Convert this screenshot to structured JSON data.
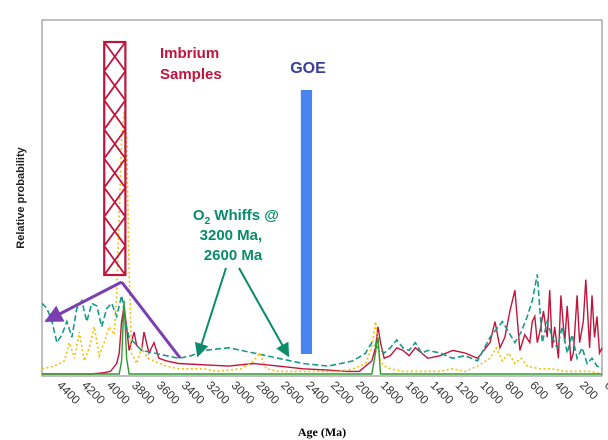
{
  "chart_data": {
    "type": "line",
    "title": "",
    "xlabel": "Age (Ma)",
    "ylabel": "Relative probability",
    "x_reversed": true,
    "xlim": [
      4500,
      0
    ],
    "ylim": [
      0,
      1
    ],
    "x_ticks": [
      4400,
      4200,
      4000,
      3800,
      3600,
      3400,
      3200,
      3000,
      2800,
      2600,
      2400,
      2200,
      2000,
      1800,
      1600,
      1400,
      1200,
      1000,
      800,
      600,
      400,
      200,
      0
    ],
    "grid": false,
    "series": [
      {
        "color": "#c0143c",
        "style": "solid",
        "x": [
          4500,
          4300,
          4100,
          4000,
          3950,
          3900,
          3880,
          3860,
          3840,
          3820,
          3800,
          3760,
          3740,
          3700,
          3680,
          3640,
          3600,
          3560,
          3500,
          3400,
          3200,
          3000,
          2800,
          2600,
          2400,
          2200,
          2050,
          1950,
          1850,
          1820,
          1800,
          1780,
          1750,
          1700,
          1650,
          1600,
          1550,
          1500,
          1450,
          1400,
          1300,
          1200,
          1100,
          1000,
          950,
          900,
          860,
          820,
          780,
          740,
          700,
          660,
          620,
          580,
          560,
          540,
          520,
          500,
          470,
          440,
          420,
          400,
          380,
          350,
          330,
          300,
          280,
          250,
          230,
          200,
          180,
          150,
          130,
          100,
          80,
          60,
          40,
          20,
          0
        ],
        "y": [
          0.0,
          0.0,
          0.0,
          0.005,
          0.01,
          0.04,
          0.08,
          0.2,
          0.26,
          0.18,
          0.09,
          0.16,
          0.11,
          0.09,
          0.16,
          0.08,
          0.12,
          0.06,
          0.05,
          0.04,
          0.035,
          0.03,
          0.04,
          0.03,
          0.02,
          0.015,
          0.01,
          0.01,
          0.05,
          0.1,
          0.18,
          0.12,
          0.06,
          0.07,
          0.1,
          0.09,
          0.07,
          0.1,
          0.08,
          0.06,
          0.07,
          0.09,
          0.08,
          0.06,
          0.09,
          0.12,
          0.2,
          0.1,
          0.14,
          0.24,
          0.32,
          0.09,
          0.15,
          0.12,
          0.2,
          0.22,
          0.12,
          0.16,
          0.24,
          0.14,
          0.32,
          0.1,
          0.18,
          0.06,
          0.3,
          0.12,
          0.26,
          0.05,
          0.08,
          0.3,
          0.12,
          0.2,
          0.36,
          0.1,
          0.3,
          0.14,
          0.22,
          0.08,
          0.1
        ]
      },
      {
        "color": "#159a8a",
        "style": "dashed",
        "x": [
          4500,
          4460,
          4420,
          4380,
          4340,
          4300,
          4260,
          4220,
          4180,
          4140,
          4100,
          4060,
          4020,
          3980,
          3940,
          3900,
          3860,
          3840,
          3820,
          3800,
          3760,
          3700,
          3600,
          3500,
          3400,
          3300,
          3200,
          3000,
          2800,
          2600,
          2400,
          2200,
          2000,
          1900,
          1850,
          1800,
          1750,
          1700,
          1650,
          1600,
          1550,
          1500,
          1450,
          1400,
          1300,
          1200,
          1100,
          1000,
          900,
          800,
          700,
          650,
          600,
          560,
          520,
          480,
          440,
          400,
          360,
          320,
          280,
          240,
          200,
          160,
          120,
          80,
          40,
          0
        ],
        "y": [
          0.27,
          0.25,
          0.2,
          0.12,
          0.15,
          0.2,
          0.14,
          0.25,
          0.28,
          0.2,
          0.27,
          0.26,
          0.18,
          0.25,
          0.27,
          0.22,
          0.3,
          0.24,
          0.18,
          0.14,
          0.12,
          0.09,
          0.08,
          0.07,
          0.06,
          0.07,
          0.09,
          0.1,
          0.08,
          0.06,
          0.04,
          0.03,
          0.05,
          0.08,
          0.12,
          0.1,
          0.08,
          0.1,
          0.13,
          0.1,
          0.09,
          0.12,
          0.08,
          0.09,
          0.08,
          0.06,
          0.07,
          0.05,
          0.14,
          0.2,
          0.12,
          0.16,
          0.22,
          0.28,
          0.38,
          0.12,
          0.2,
          0.14,
          0.1,
          0.18,
          0.08,
          0.15,
          0.06,
          0.1,
          0.04,
          0.06,
          0.03,
          0.02
        ]
      },
      {
        "color": "#f2c000",
        "style": "dotted",
        "x": [
          4500,
          4400,
          4320,
          4280,
          4240,
          4200,
          4160,
          4120,
          4080,
          4040,
          4000,
          3960,
          3920,
          3900,
          3880,
          3860,
          3840,
          3820,
          3800,
          3780,
          3760,
          3740,
          3700,
          3650,
          3600,
          3550,
          3500,
          3400,
          3300,
          3200,
          3100,
          3000,
          2900,
          2800,
          2750,
          2700,
          2600,
          2500,
          2400,
          2300,
          2200,
          2100,
          2000,
          1900,
          1850,
          1820,
          1800,
          1780,
          1750,
          1700,
          1600,
          1500,
          1400,
          1300,
          1200,
          1100,
          1000,
          900,
          850,
          800,
          750,
          700,
          650,
          600,
          500,
          400,
          300,
          200,
          100,
          0
        ],
        "y": [
          0.02,
          0.03,
          0.05,
          0.12,
          0.06,
          0.16,
          0.05,
          0.1,
          0.18,
          0.07,
          0.12,
          0.18,
          0.15,
          0.3,
          0.6,
          0.9,
          1.0,
          0.9,
          0.4,
          0.08,
          0.06,
          0.04,
          0.1,
          0.06,
          0.05,
          0.04,
          0.03,
          0.02,
          0.02,
          0.02,
          0.01,
          0.015,
          0.02,
          0.05,
          0.08,
          0.02,
          0.01,
          0.01,
          0.01,
          0.01,
          0.01,
          0.01,
          0.02,
          0.04,
          0.1,
          0.2,
          0.12,
          0.05,
          0.03,
          0.02,
          0.01,
          0.01,
          0.01,
          0.01,
          0.02,
          0.01,
          0.03,
          0.06,
          0.1,
          0.05,
          0.08,
          0.04,
          0.06,
          0.03,
          0.02,
          0.02,
          0.01,
          0.01,
          0.01,
          0.0
        ]
      },
      {
        "color": "#2e9b2e",
        "style": "solid",
        "x": [
          4500,
          3880,
          3860,
          3840,
          3820,
          3800,
          1850,
          1820,
          1810,
          1800,
          1780,
          0
        ],
        "y": [
          0.0,
          0.0,
          0.05,
          0.28,
          0.06,
          0.0,
          0.0,
          0.08,
          0.12,
          0.14,
          0.0,
          0.0
        ]
      }
    ],
    "annotations": [
      {
        "kind": "hatched-bar",
        "label": "Imbrium\nSamples",
        "x_range": [
          4000,
          3830
        ],
        "color": "#c0143c"
      },
      {
        "kind": "bar",
        "label": "GOE",
        "x_range": [
          2420,
          2330
        ],
        "color": "#4a84f0"
      },
      {
        "kind": "text",
        "label": "O2 Whiffs @\n3200 Ma,\n2600 Ma",
        "color": "#0a8c6a",
        "arrow_targets_x": [
          3200,
          2600
        ]
      },
      {
        "kind": "polyline-arrow",
        "color": "#7a3fb0",
        "points_x": [
          4500,
          3860,
          3390
        ]
      }
    ],
    "text": {
      "imbrium_line1": "Imbrium",
      "imbrium_line2": "Samples",
      "goe": "GOE",
      "whiffs_o": "O",
      "whiffs_sub": "2",
      "whiffs_line1_rest": " Whiffs @",
      "whiffs_line2": "3200 Ma,",
      "whiffs_line3": "2600 Ma"
    }
  }
}
